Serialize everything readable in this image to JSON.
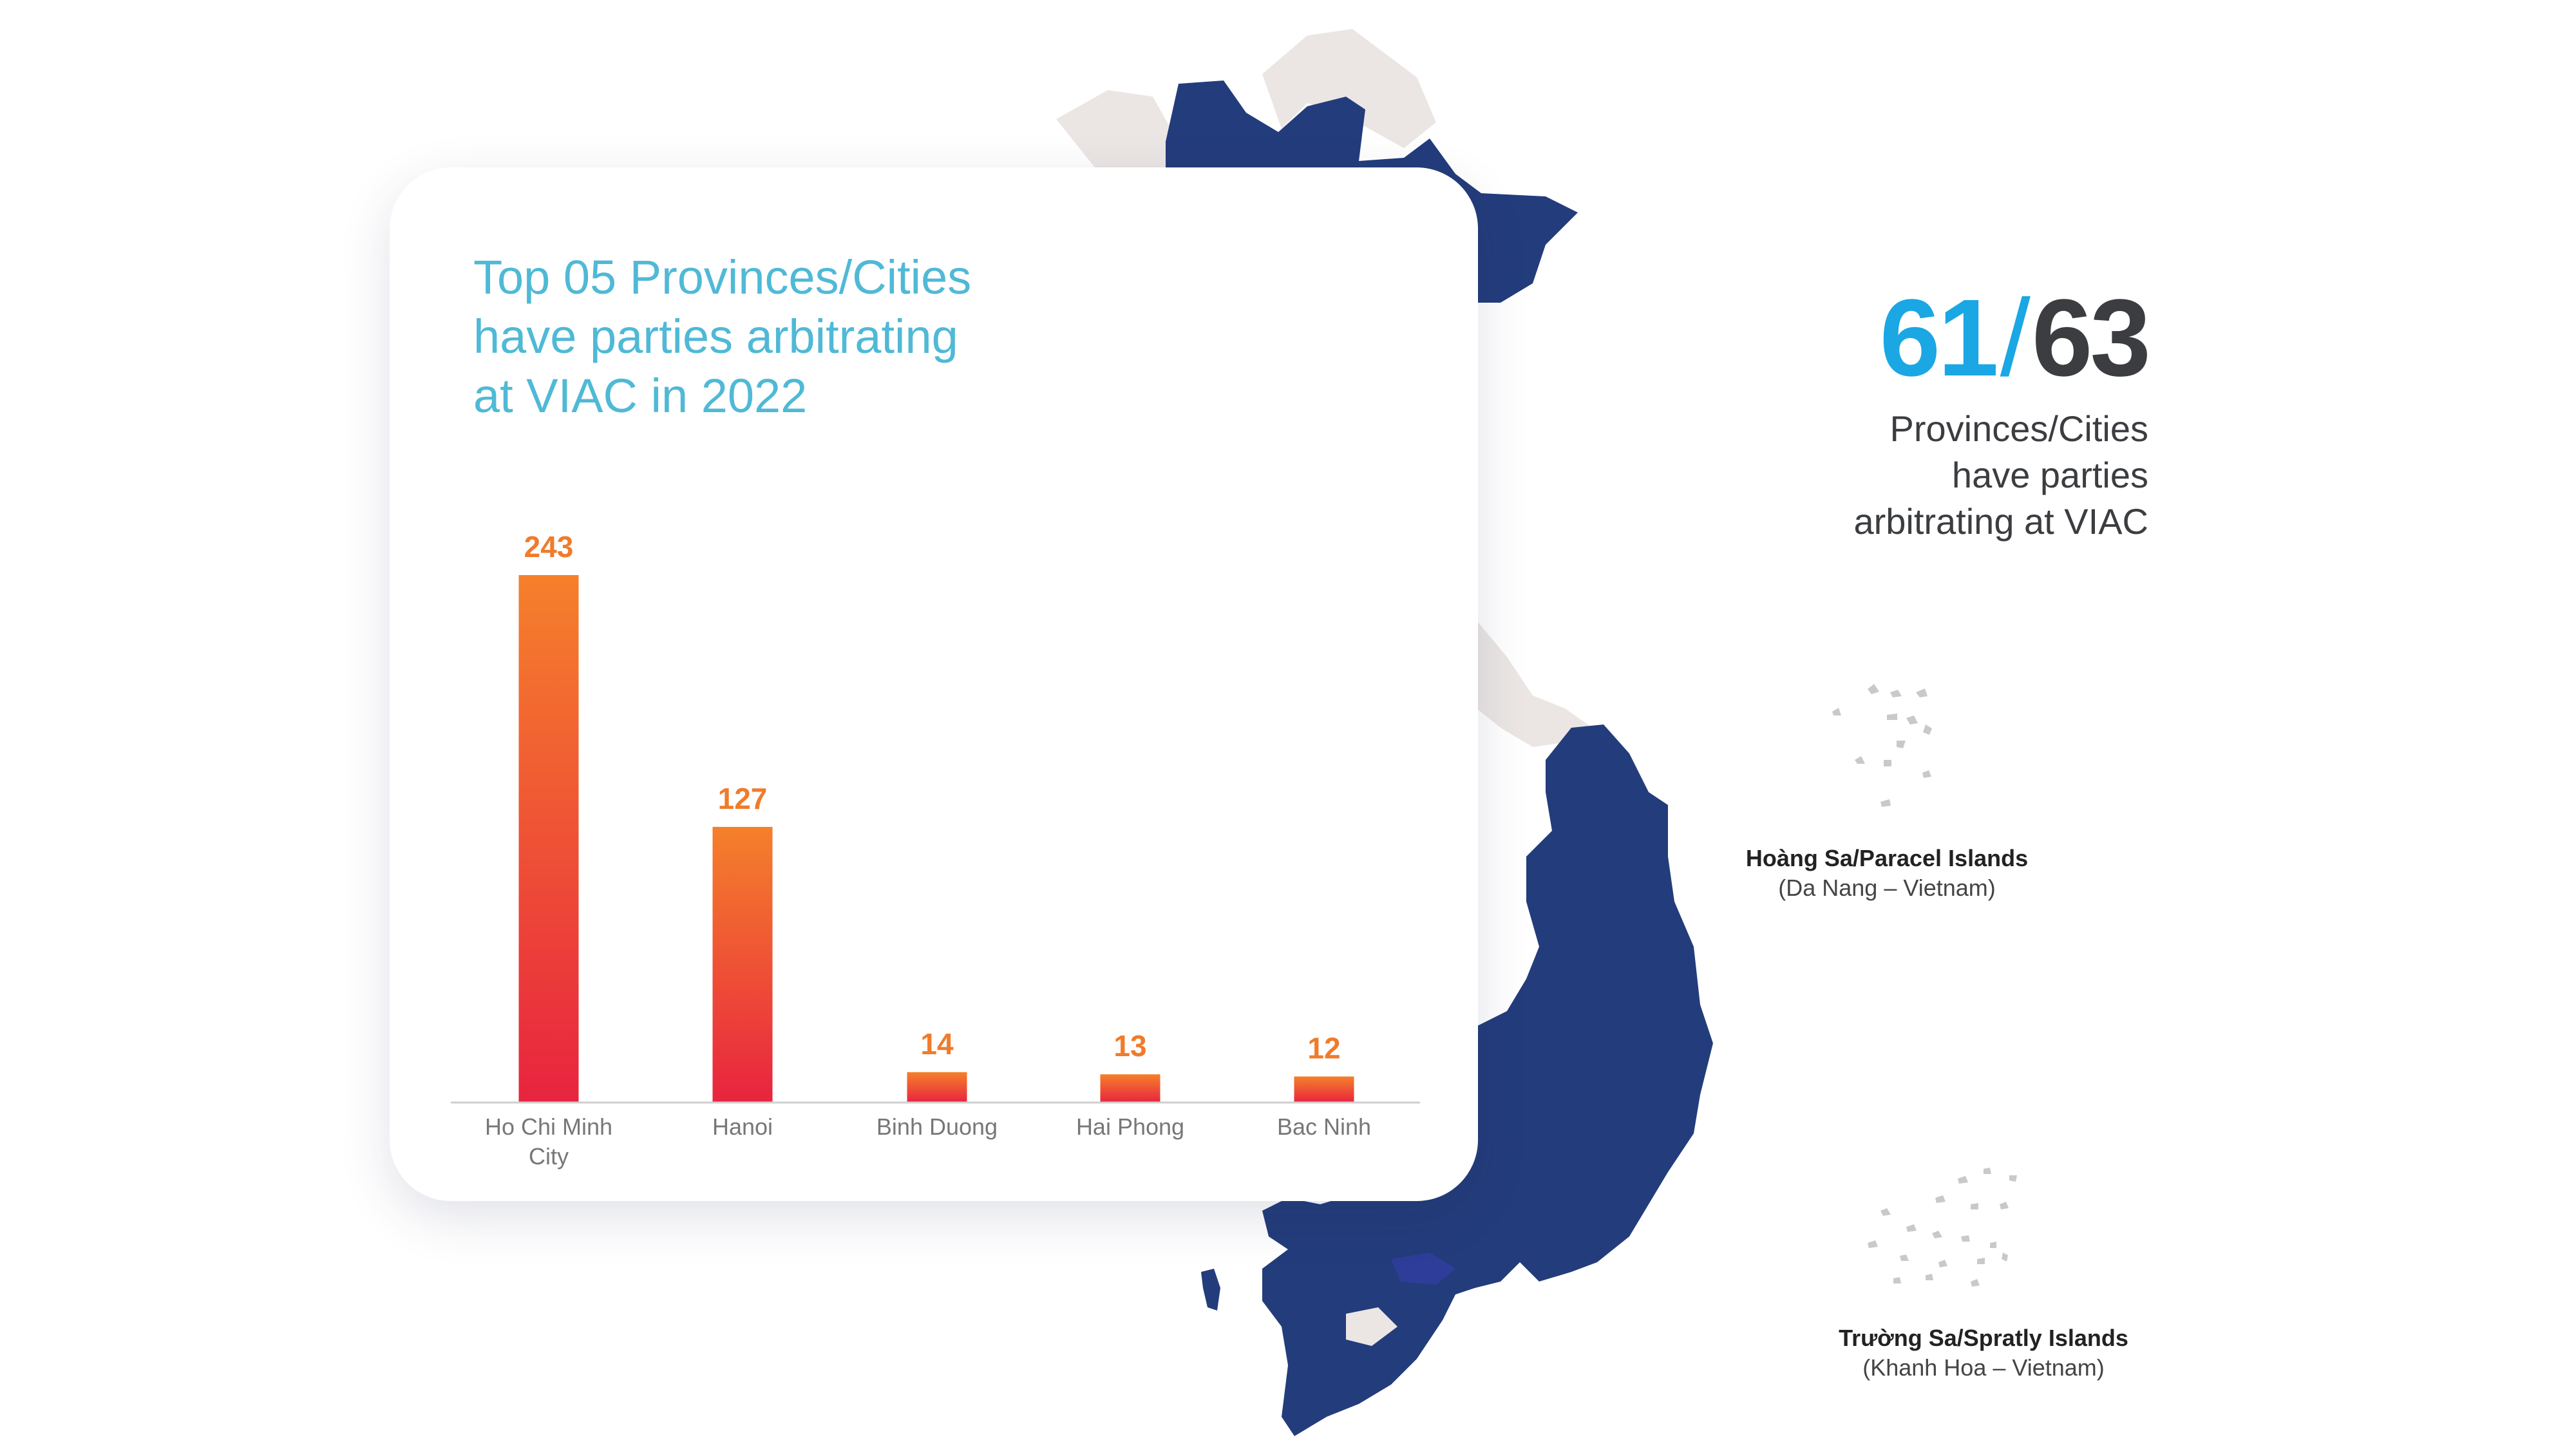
{
  "colors": {
    "map_fill": "#233c7b",
    "map_unhighlighted": "#ebe6e4",
    "map_highlight_hanoi": "#b3b3b3",
    "bar_top": "#f5802b",
    "bar_bottom": "#e8243f",
    "title": "#4fb9d6",
    "stat_accent": "#1aa7e4",
    "stat_text": "#3b3d40",
    "value_label": "#f07b2b",
    "island": "#c9c9c9"
  },
  "stat": {
    "count": "61",
    "separator": "/",
    "total": "63",
    "caption": "Provinces/Cities\nhave parties\narbitrating at VIAC"
  },
  "islands": {
    "paracel_name": "Hoàng Sa/Paracel Islands",
    "paracel_sub": "(Da Nang – Vietnam)",
    "spratly_name": "Trường Sa/Spratly Islands",
    "spratly_sub": "(Khanh Hoa – Vietnam)"
  },
  "chart_data": {
    "type": "bar",
    "title": "Top 05 Provinces/Cities\nhave parties arbitrating\nat VIAC in 2022",
    "categories": [
      "Ho Chi Minh City",
      "Hanoi",
      "Binh Duong",
      "Hai Phong",
      "Bac Ninh"
    ],
    "values": [
      243,
      127,
      14,
      13,
      12
    ],
    "ylim": [
      0,
      243
    ],
    "grid": false,
    "legend": "none"
  }
}
